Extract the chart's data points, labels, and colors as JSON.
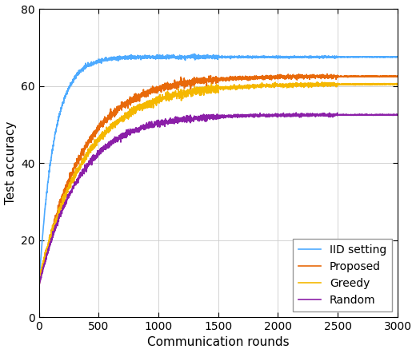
{
  "title": "",
  "xlabel": "Communication rounds",
  "ylabel": "Test accuracy",
  "xlim": [
    0,
    3000
  ],
  "ylim": [
    0,
    80
  ],
  "xticks": [
    0,
    500,
    1000,
    1500,
    2000,
    2500,
    3000
  ],
  "yticks": [
    0,
    20,
    40,
    60,
    80
  ],
  "lines": {
    "IID setting": {
      "color": "#4DAAFF",
      "final": 67.5,
      "init": 8.0,
      "k": 0.008,
      "noise_std": 0.25
    },
    "Proposed": {
      "color": "#E8690A",
      "final": 62.5,
      "init": 8.0,
      "k": 0.0028,
      "noise_std": 0.5
    },
    "Greedy": {
      "color": "#F5B800",
      "final": 60.5,
      "init": 10.0,
      "k": 0.0025,
      "noise_std": 0.5
    },
    "Random": {
      "color": "#8B1FA8",
      "final": 52.5,
      "init": 8.0,
      "k": 0.003,
      "noise_std": 0.4
    }
  },
  "legend_loc": "lower right",
  "linewidth": 1.2,
  "figsize": [
    5.2,
    4.42
  ],
  "dpi": 100
}
